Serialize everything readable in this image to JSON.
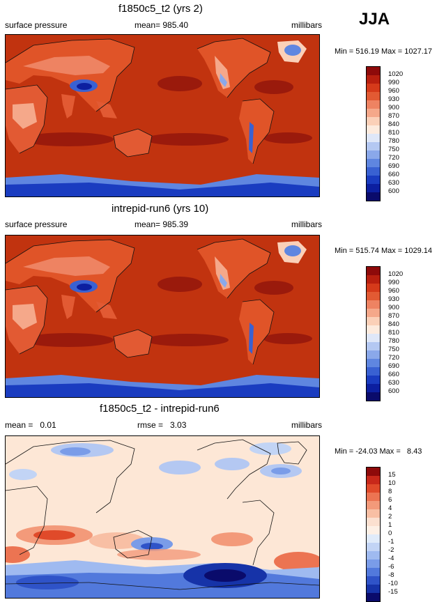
{
  "season": "JJA",
  "panels": [
    {
      "title": "f1850c5_t2 (yrs 2)",
      "left_label": "surface pressure",
      "center_label": "mean= 985.40",
      "right_label": "millibars",
      "minmax": "Min = 516.19 Max = 1027.17",
      "colorbar_ticks": [
        "1020",
        "990",
        "960",
        "930",
        "900",
        "870",
        "840",
        "810",
        "780",
        "750",
        "720",
        "690",
        "660",
        "630",
        "600"
      ]
    },
    {
      "title": "intrepid-run6 (yrs 10)",
      "left_label": "surface pressure",
      "center_label": "mean= 985.39",
      "right_label": "millibars",
      "minmax": "Min = 515.74 Max = 1029.14",
      "colorbar_ticks": [
        "1020",
        "990",
        "960",
        "930",
        "900",
        "870",
        "840",
        "810",
        "780",
        "750",
        "720",
        "690",
        "660",
        "630",
        "600"
      ]
    },
    {
      "title": "f1850c5_t2 - intrepid-run6",
      "left_label": "mean =   0.01",
      "center_label": "rmse =   3.03",
      "right_label": "millibars",
      "minmax": "Min = -24.03 Max =   8.43",
      "colorbar_ticks": [
        "15",
        "10",
        "8",
        "6",
        "4",
        "2",
        "1",
        "0",
        "-1",
        "-2",
        "-4",
        "-6",
        "-8",
        "-10",
        "-15"
      ]
    }
  ],
  "colors": {
    "pressure_scale": [
      "#8e0a0a",
      "#b81f0f",
      "#d53a1a",
      "#e25a33",
      "#ee8362",
      "#f5a88a",
      "#fbd0b8",
      "#fdebde",
      "#dfe7f8",
      "#b4c8f2",
      "#8aa8ea",
      "#5f86e0",
      "#3961d2",
      "#1a3cc0",
      "#0c1fa0",
      "#0a0b6b"
    ],
    "diff_scale": [
      "#8e0a0a",
      "#c8281a",
      "#e04a2a",
      "#ec7452",
      "#f39a7a",
      "#f8bfa4",
      "#fbe0d0",
      "#fdf0e6",
      "#e0ebfa",
      "#c2d4f5",
      "#9fbaf0",
      "#7a9ce8",
      "#5279dc",
      "#2f53c8",
      "#1633a8",
      "#0a0b6b"
    ]
  }
}
